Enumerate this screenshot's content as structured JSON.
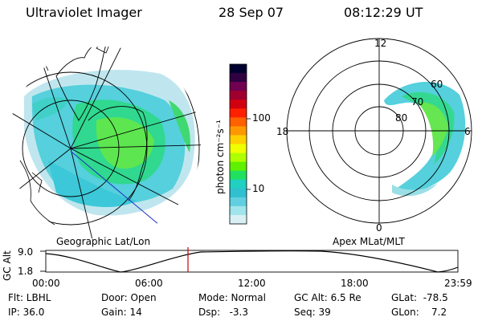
{
  "header": {
    "instrument": "Ultraviolet Imager",
    "date": "28 Sep 07",
    "time": "08:12:29 UT"
  },
  "colorbar": {
    "unit_label": "photon cm⁻²s⁻¹",
    "ticks": [
      "100",
      "10"
    ],
    "colors": [
      "#000030",
      "#300040",
      "#700050",
      "#a00030",
      "#d00010",
      "#ff2000",
      "#ff6000",
      "#ff9800",
      "#ffd000",
      "#f0ff00",
      "#b0ff00",
      "#60f000",
      "#20e060",
      "#20d0c0",
      "#30c0d0",
      "#60d0e0",
      "#a0e4ec",
      "#d8f0f4"
    ]
  },
  "left_panel": {
    "caption": "Geographic Lat/Lon"
  },
  "right_panel": {
    "caption": "Apex MLat/MLT",
    "mlt_labels": {
      "top": "12",
      "left": "18",
      "right": "6",
      "bottom": "0"
    },
    "lat_labels": [
      "80",
      "70",
      "60"
    ]
  },
  "timeline": {
    "ylabel": "GC Alt",
    "yticks": [
      "9.0",
      "1.8"
    ],
    "xticks": [
      "00:00",
      "06:00",
      "12:00",
      "18:00",
      "23:59"
    ],
    "marker_color": "#d00000"
  },
  "footer": {
    "flt": "Flt: LBHL",
    "ip": "IP: 36.0",
    "door": "Door: Open",
    "gain": "Gain: 14",
    "mode": "Mode: Normal",
    "dsp": "Dsp:   -3.3",
    "gcalt": "GC Alt: 6.5 Re",
    "seq": "Seq: 39",
    "glat": "GLat:  -78.5",
    "glon": "GLon:    7.2"
  }
}
